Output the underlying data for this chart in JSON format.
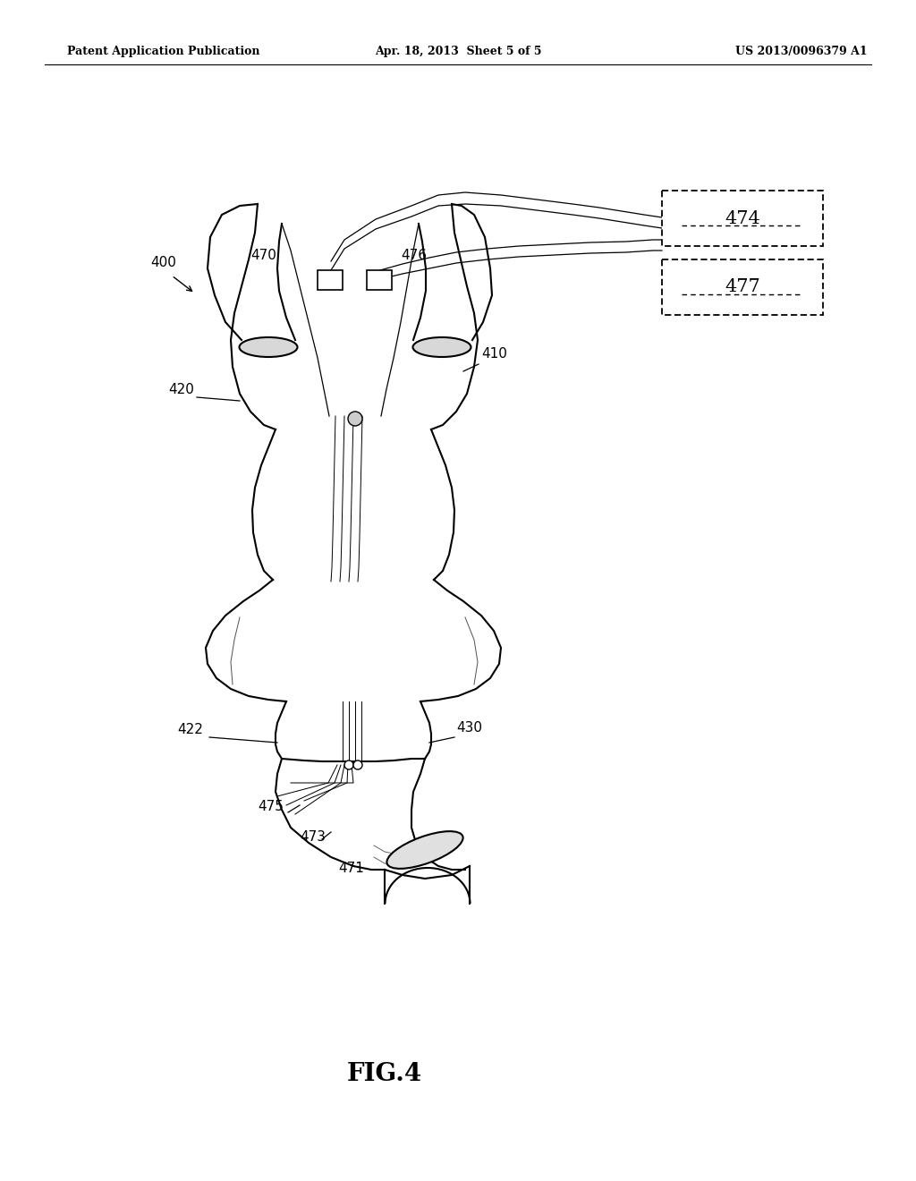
{
  "bg_color": "#ffffff",
  "header_left": "Patent Application Publication",
  "header_center": "Apr. 18, 2013  Sheet 5 of 5",
  "header_right": "US 2013/0096379 A1",
  "fig_label": "FIG.4",
  "lw_main": 1.5,
  "lw_thin": 0.9,
  "lw_inner": 0.7,
  "color": "#000000"
}
